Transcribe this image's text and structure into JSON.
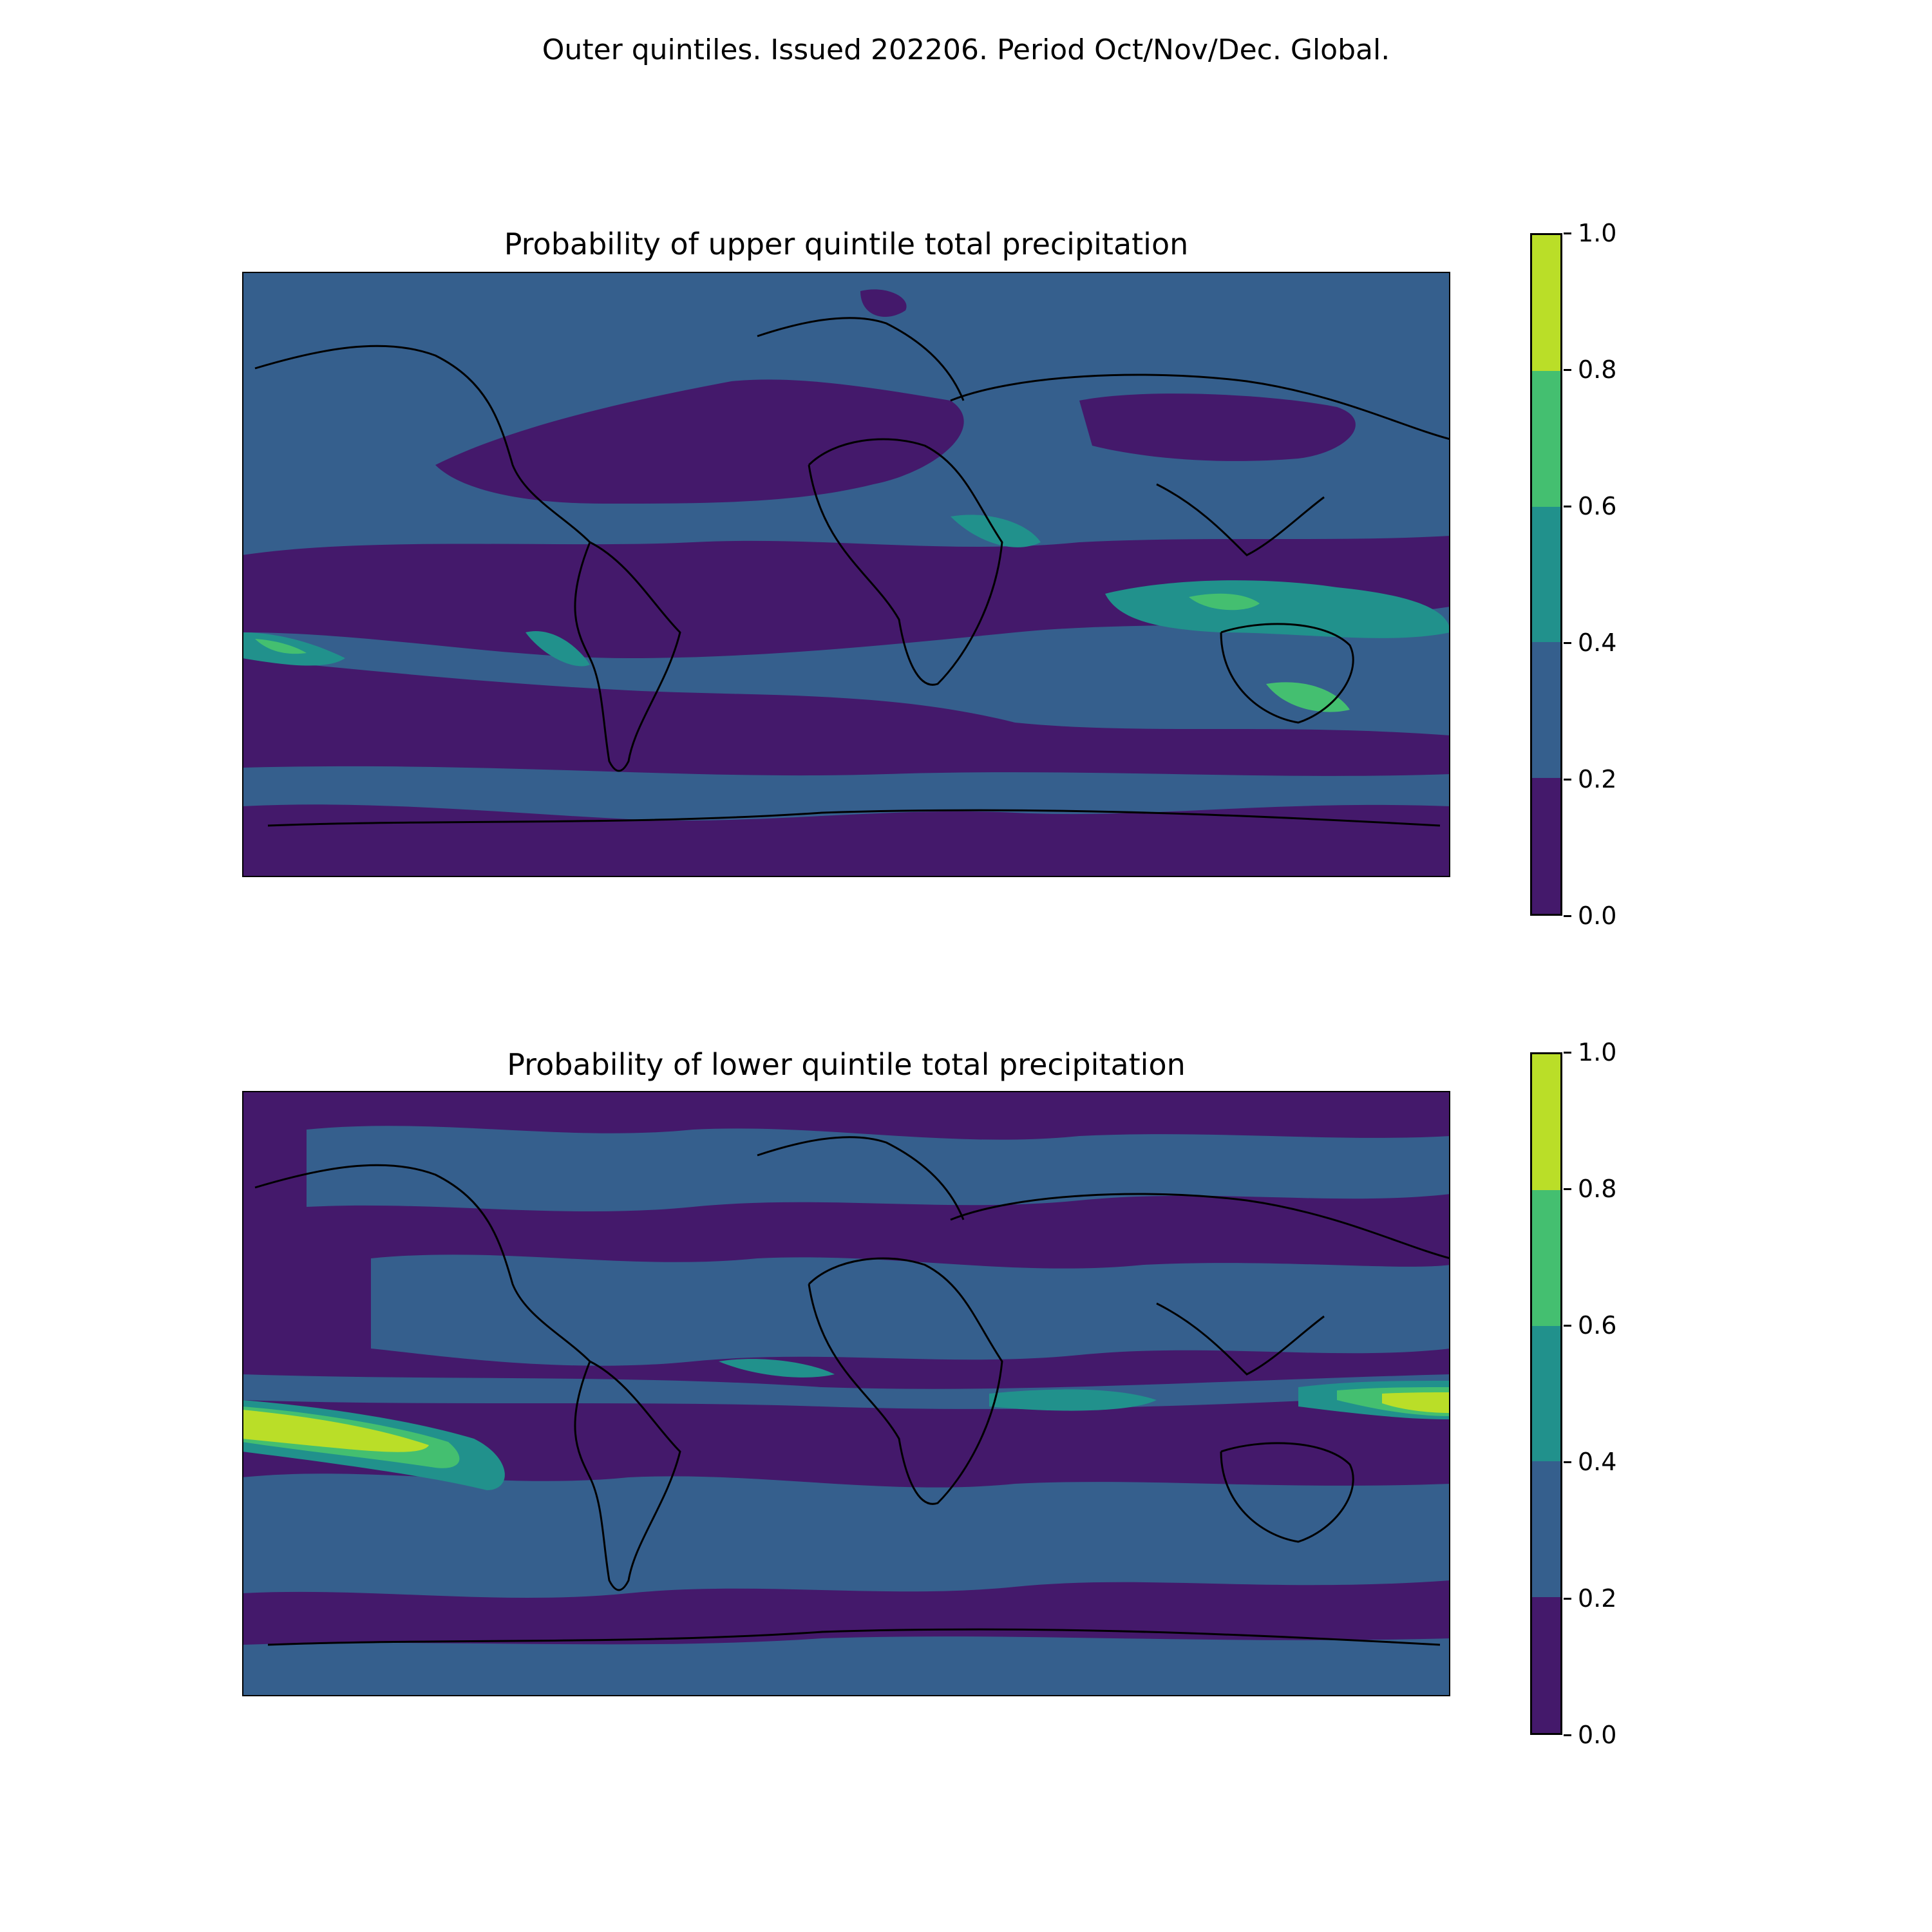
{
  "suptitle": "Outer quintiles. Issued 202206. Period Oct/Nov/Dec. Global.",
  "palette": [
    "#44196b",
    "#355f8d",
    "#21918c",
    "#44bf70",
    "#bade28"
  ],
  "colorbar": {
    "ticks": [
      "0.0",
      "0.2",
      "0.4",
      "0.6",
      "0.8",
      "1.0"
    ],
    "levels": [
      0,
      0.2,
      0.4,
      0.6,
      0.8,
      1.0
    ]
  },
  "panels": [
    {
      "title": "Probability of upper quintile total precipitation"
    },
    {
      "title": "Probability of lower quintile total precipitation"
    }
  ]
}
